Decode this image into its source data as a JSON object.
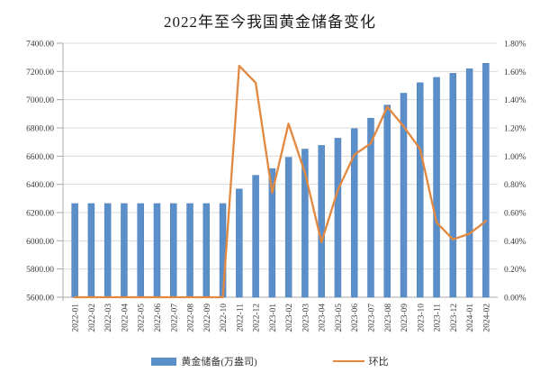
{
  "chart_data": {
    "type": "bar",
    "title": "2022年至今我国黄金储备变化",
    "categories": [
      "2022-01",
      "2022-02",
      "2022-03",
      "2022-04",
      "2022-05",
      "2022-06",
      "2022-07",
      "2022-08",
      "2022-09",
      "2022-10",
      "2022-11",
      "2022-12",
      "2023-01",
      "2023-02",
      "2023-03",
      "2023-04",
      "2023-05",
      "2023-06",
      "2023-07",
      "2023-08",
      "2023-09",
      "2023-10",
      "2023-11",
      "2023-12",
      "2024-01",
      "2024-02"
    ],
    "series": [
      {
        "name": "黄金储备(万盎司)",
        "type": "bar",
        "axis": "left",
        "values": [
          6264,
          6264,
          6264,
          6264,
          6264,
          6264,
          6264,
          6264,
          6264,
          6264,
          6367,
          6464,
          6512,
          6592,
          6650,
          6676,
          6727,
          6795,
          6869,
          6962,
          7046,
          7120,
          7158,
          7187,
          7219,
          7258
        ]
      },
      {
        "name": "环比",
        "type": "line",
        "axis": "right",
        "values": [
          0.0,
          0.0,
          0.0,
          0.0,
          0.0,
          0.0,
          0.0,
          0.0,
          0.0,
          0.0,
          1.64,
          1.52,
          0.74,
          1.23,
          0.88,
          0.39,
          0.76,
          1.01,
          1.09,
          1.35,
          1.21,
          1.05,
          0.53,
          0.41,
          0.45,
          0.54
        ]
      }
    ],
    "axes": {
      "left": {
        "min": 5600,
        "max": 7400,
        "step": 200,
        "decimals": 2,
        "suffix": ""
      },
      "right": {
        "min": 0,
        "max": 1.8,
        "step": 0.2,
        "decimals": 2,
        "suffix": "%"
      }
    },
    "grid": true,
    "legend_position": "bottom",
    "colors": {
      "bar": "#5B8FC9",
      "bar_edge": "#4D7EB8",
      "line": "#E2883F",
      "grid": "#DCDCDC",
      "axis": "#ABABAB",
      "tick": "#A6A6A6",
      "text": "#3A3A3A"
    }
  }
}
